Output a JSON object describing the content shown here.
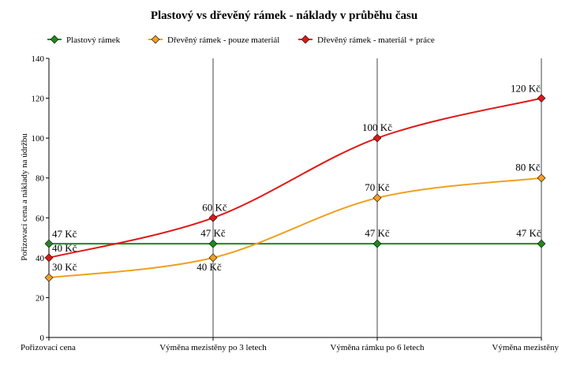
{
  "chart_data": {
    "type": "line",
    "title": "Plastový vs dřevěný rámek - náklady v průběhu času",
    "xlabel": "",
    "ylabel": "Pořizovací cena a náklady na údržbu",
    "categories": [
      "Pořizovací cena",
      "Výměna mezistěny po 3 letech",
      "Výměna rámku po 6 letech",
      "Výměna mezistěny"
    ],
    "ylim": [
      0,
      140
    ],
    "yticks": [
      0,
      20,
      40,
      60,
      80,
      100,
      120,
      140
    ],
    "grid": "vertical",
    "legend_position": "top",
    "series": [
      {
        "name": "Plastový rámek",
        "color": "#1a8c1a",
        "values": [
          47,
          47,
          47,
          47
        ],
        "labels": [
          "47 Kč",
          "47 Kč",
          "47 Kč",
          "47 Kč"
        ]
      },
      {
        "name": "Dřevěný rámek - pouze materiál",
        "color": "#f0a020",
        "values": [
          30,
          40,
          70,
          80
        ],
        "labels": [
          "30 Kč",
          "40 Kč",
          "70 Kč",
          "80 Kč"
        ]
      },
      {
        "name": "Dřevěný rámek - materiál + práce",
        "color": "#e01818",
        "values": [
          40,
          60,
          100,
          120
        ],
        "labels": [
          "40 Kč",
          "60 Kč",
          "100 Kč",
          "120 Kč"
        ]
      }
    ]
  }
}
